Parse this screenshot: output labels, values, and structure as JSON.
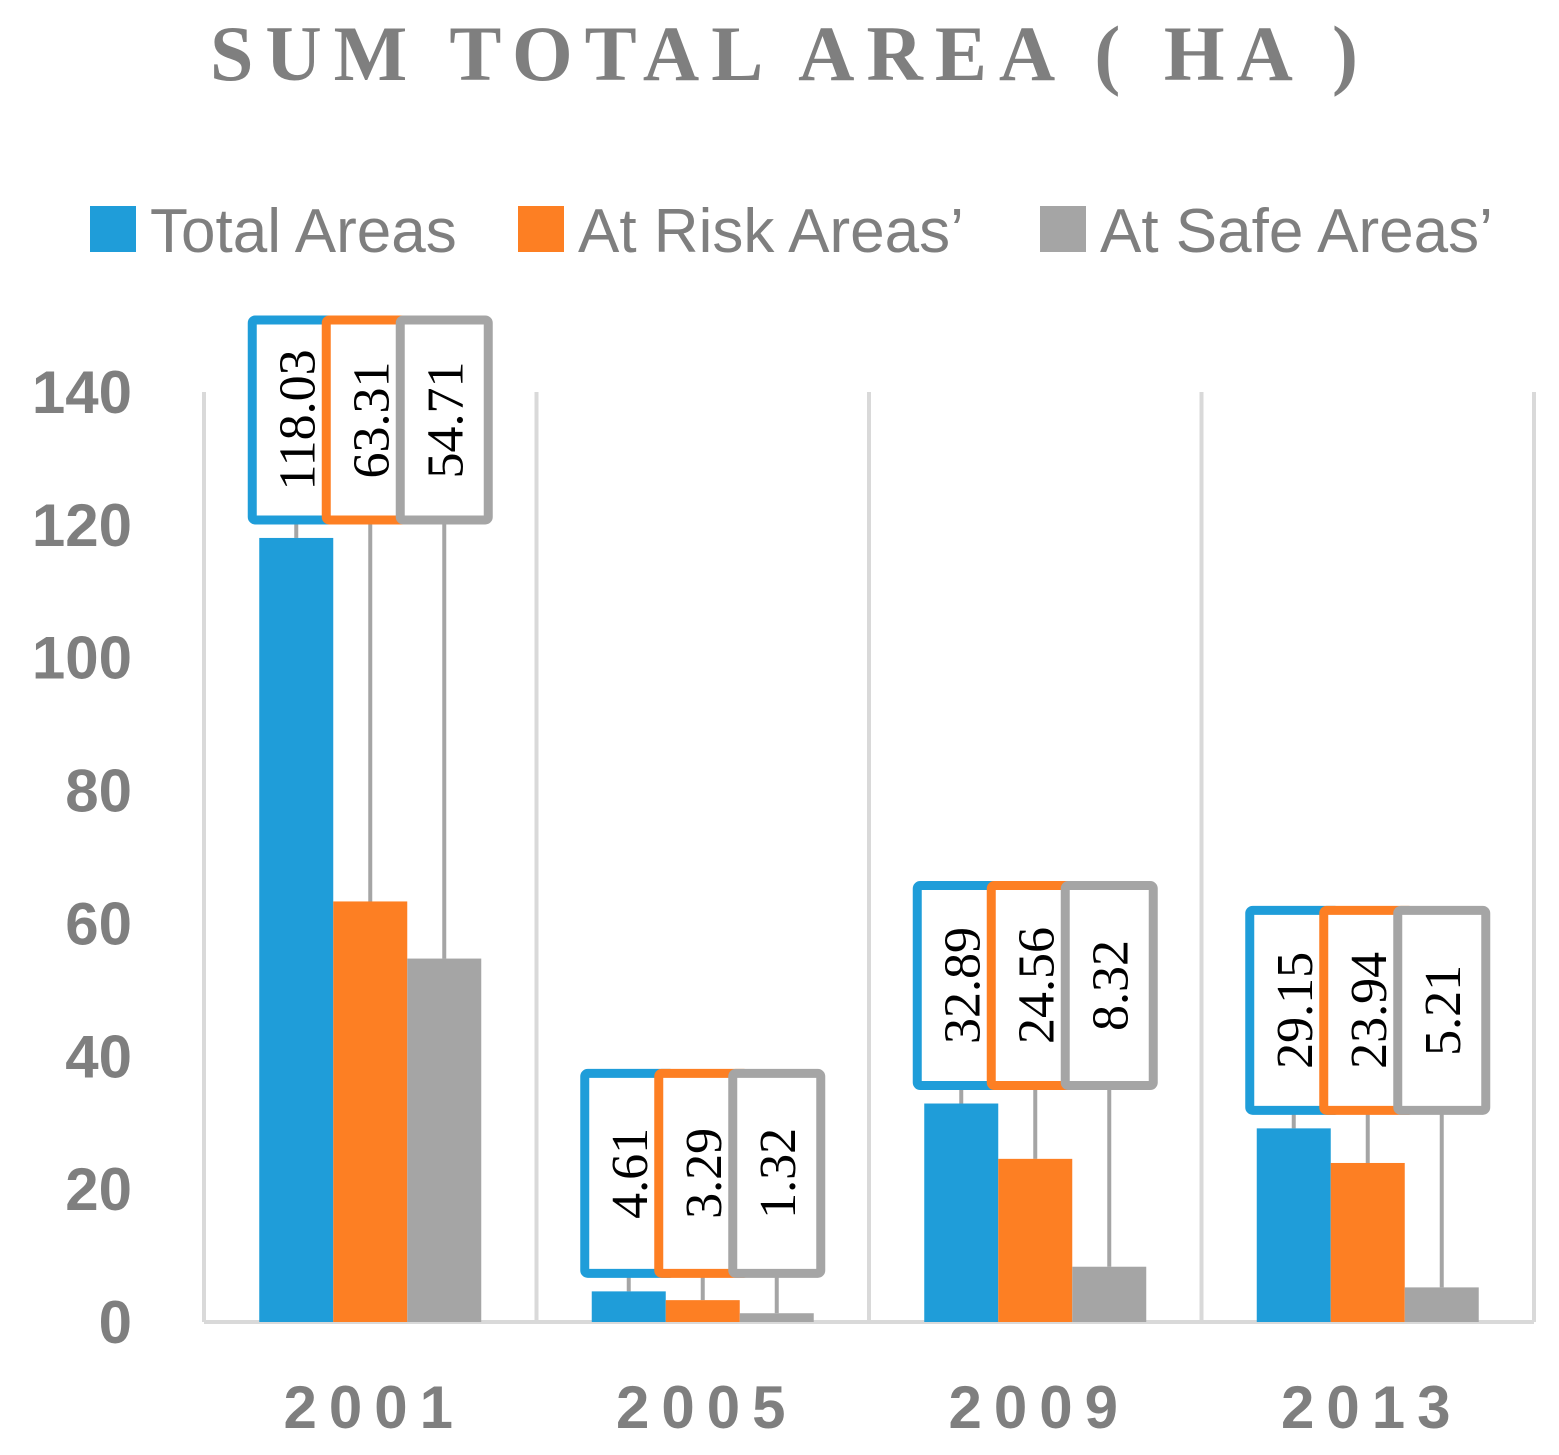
{
  "chart_data": {
    "type": "bar",
    "title": "SUM TOTAL AREA ( HA )",
    "xlabel": "",
    "ylabel": "",
    "ylim": [
      0,
      140
    ],
    "yticks": [
      0,
      20,
      40,
      60,
      80,
      100,
      120,
      140
    ],
    "categories": [
      "2001",
      "2005",
      "2009",
      "2013"
    ],
    "legend_position": "top",
    "series": [
      {
        "name": "Total Areas",
        "color": "#1f9dd9",
        "values": [
          118.03,
          4.61,
          32.89,
          29.15
        ],
        "labels": [
          "118.03",
          "4.61",
          "32.89",
          "29.15"
        ]
      },
      {
        "name": "At Risk Areas’",
        "color": "#fd7f23",
        "values": [
          63.31,
          3.29,
          24.56,
          23.94
        ],
        "labels": [
          "63.31",
          "3.29",
          "24.56",
          "23.94"
        ]
      },
      {
        "name": "At Safe Areas’",
        "color": "#a5a5a5",
        "values": [
          54.71,
          1.32,
          8.32,
          5.21
        ],
        "labels": [
          "54.71",
          "1.32",
          "8.32",
          "5.21"
        ]
      }
    ]
  }
}
